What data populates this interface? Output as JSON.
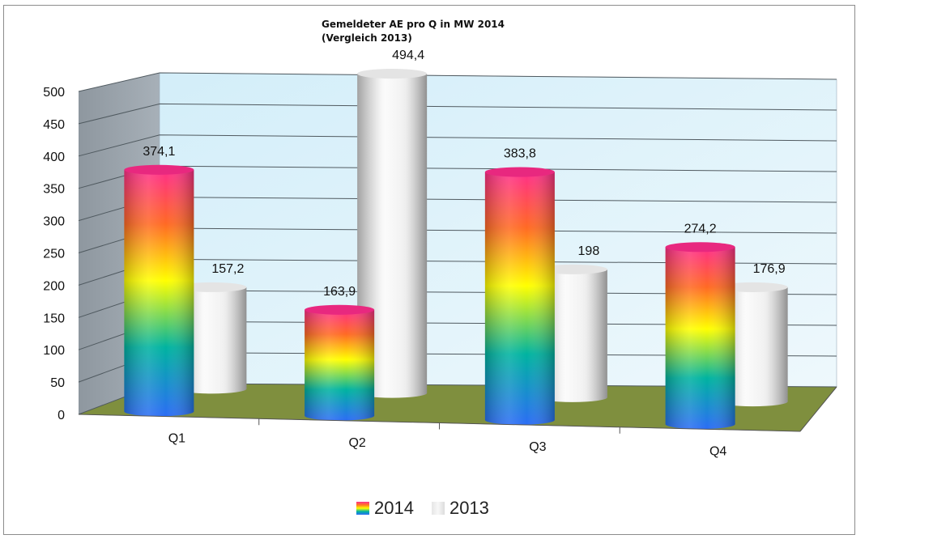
{
  "chart_data": {
    "type": "bar",
    "style": "3d-cylinder",
    "title": [
      "Gemeldeter AE  pro Q in MW 2014",
      "(Vergleich 2013)"
    ],
    "categories": [
      "Q1",
      "Q2",
      "Q3",
      "Q4"
    ],
    "series": [
      {
        "name": "2014",
        "values": [
          374.1,
          163.9,
          383.8,
          274.2
        ],
        "labels": [
          "374,1",
          "163,9",
          "383,8",
          "274,2"
        ]
      },
      {
        "name": "2013",
        "values": [
          157.2,
          494.4,
          198,
          176.9
        ],
        "labels": [
          "157,2",
          "494,4",
          "198",
          "176,9"
        ]
      }
    ],
    "yticks": [
      "0",
      "50",
      "100",
      "150",
      "200",
      "250",
      "300",
      "350",
      "400",
      "450",
      "500"
    ],
    "ylim": [
      0,
      500
    ],
    "grid": true,
    "legend": "bottom",
    "colors": {
      "2014": "rainbow-gradient",
      "2013": "#e8e8e8",
      "walls": "#dff2fb",
      "floor": "#7f8f3e",
      "side_wall": "#9aa3ab"
    }
  }
}
